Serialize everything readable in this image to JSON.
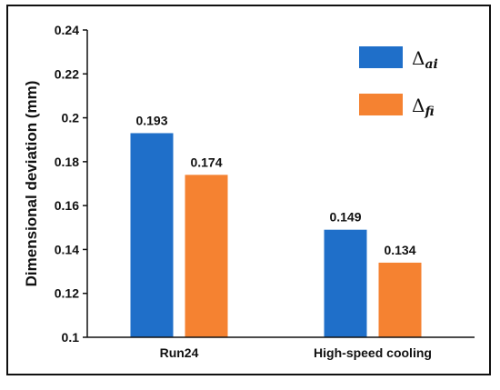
{
  "chart_data": {
    "type": "bar",
    "ylabel": "Dimensional deviation  (mm)",
    "xlabel": "",
    "ylim": [
      0.1,
      0.24
    ],
    "yticks": [
      0.1,
      0.12,
      0.14,
      0.16,
      0.18,
      0.2,
      0.22,
      0.24
    ],
    "ytick_labels": [
      "0.1",
      "0.12",
      "0.14",
      "0.16",
      "0.18",
      "0.2",
      "0.22",
      "0.24"
    ],
    "categories": [
      "Run24",
      "High-speed cooling"
    ],
    "series": [
      {
        "legend_symbol": "Δ",
        "legend_subscript": "ai",
        "color": "#1f6fc9",
        "values": [
          0.193,
          0.149
        ],
        "labels": [
          "0.193",
          "0.149"
        ]
      },
      {
        "legend_symbol": "Δ",
        "legend_subscript": "fi",
        "color": "#f58231",
        "values": [
          0.174,
          0.134
        ],
        "labels": [
          "0.174",
          "0.134"
        ]
      }
    ],
    "legend_position": "top-right",
    "grid": false
  }
}
